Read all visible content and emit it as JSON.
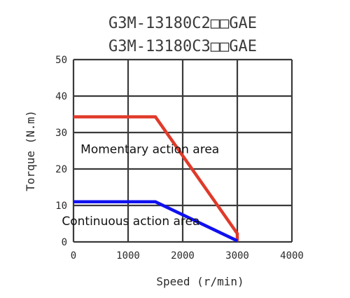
{
  "chart_data": {
    "type": "line",
    "title_lines": [
      "G3M-13180C2□□GAE",
      "G3M-13180C3□□GAE"
    ],
    "xlabel": "Speed (r/min)",
    "ylabel": "Torque (N.m)",
    "xlim": [
      0,
      4000
    ],
    "ylim": [
      0,
      50
    ],
    "xticks": [
      0,
      1000,
      2000,
      3000,
      4000
    ],
    "yticks": [
      0,
      10,
      20,
      30,
      40,
      50
    ],
    "grid": true,
    "series": [
      {
        "color": "#e03a2a",
        "points": [
          [
            0,
            34.3
          ],
          [
            1500,
            34.3
          ],
          [
            3000,
            2.3
          ],
          [
            3000,
            0.3
          ]
        ]
      },
      {
        "color": "#1010f0",
        "points": [
          [
            0,
            11.0
          ],
          [
            1500,
            11.0
          ],
          [
            3000,
            0.3
          ]
        ]
      }
    ],
    "annotations": [
      {
        "text": "Momentary action area",
        "x": 1400,
        "y": 24.3
      },
      {
        "text": "Continuous action area",
        "x": 1050,
        "y": 4.6
      }
    ]
  }
}
